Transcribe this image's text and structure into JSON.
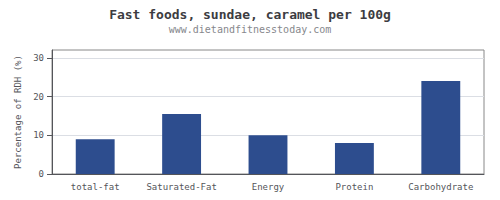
{
  "chart_data": {
    "type": "bar",
    "title": "Fast foods, sundae, caramel per 100g",
    "subtitle": "www.dietandfitnesstoday.com",
    "ylabel": "Percentage of RDH (%)",
    "categories": [
      "total-fat",
      "Saturated-Fat",
      "Energy",
      "Protein",
      "Carbohydrate"
    ],
    "values": [
      9.0,
      15.5,
      10.0,
      8.0,
      24.0
    ],
    "color": "#2d4d8e",
    "ylim": [
      0,
      32
    ],
    "yticks": [
      0,
      10,
      20,
      30
    ],
    "grid": true
  }
}
